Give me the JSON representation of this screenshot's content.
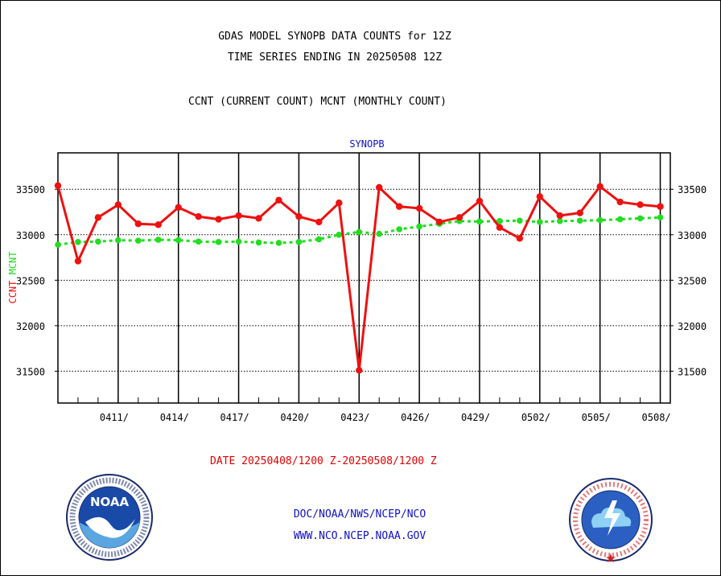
{
  "header": {
    "title_line1": "GDAS MODEL SYNOPB DATA COUNTS for 12Z",
    "title_line2": "TIME SERIES ENDING IN 20250508 12Z",
    "subtitle": "CCNT (CURRENT COUNT) MCNT (MONTHLY COUNT)"
  },
  "footer": {
    "date_range": "DATE 20250408/1200 Z-20250508/1200 Z",
    "doc": "DOC/NOAA/NWS/NCEP/NCO",
    "www": "WWW.NCO.NCEP.NOAA.GOV"
  },
  "logos": {
    "left_name": "noaa-logo",
    "left_text": "NOAA",
    "right_name": "nws-logo"
  },
  "colors": {
    "ccnt": "#ee1111",
    "mcnt": "#22dd22",
    "axis_text": "#000000",
    "title_blue": "#1010c0"
  },
  "chart_data": {
    "type": "line",
    "title": "SYNOPB",
    "ylabel_parts": [
      "CCNT",
      "MCNT"
    ],
    "ylim": [
      31150,
      33900
    ],
    "yticks": [
      31500,
      32000,
      32500,
      33000,
      33500
    ],
    "x_start_day": 0,
    "x_end_day": 30.5,
    "x_tick_days": [
      3,
      6,
      9,
      12,
      15,
      18,
      21,
      24,
      27,
      30
    ],
    "x_tick_labels": [
      "0411/",
      "0414/",
      "0417/",
      "0420/",
      "0423/",
      "0426/",
      "0429/",
      "0502/",
      "0505/",
      "0508/"
    ],
    "grid": "horizontal dotted at y ticks; vertical solid at x ticks",
    "series": [
      {
        "name": "CCNT",
        "color": "#ee1111",
        "values": [
          33540,
          32710,
          33190,
          33330,
          33120,
          33110,
          33300,
          33200,
          33170,
          33210,
          33180,
          33380,
          33200,
          33140,
          33350,
          31510,
          33520,
          33310,
          33290,
          33140,
          33190,
          33370,
          33080,
          32960,
          33420,
          33210,
          33240,
          33530,
          33360,
          33330,
          33310
        ]
      },
      {
        "name": "MCNT",
        "color": "#22dd22",
        "values": [
          32890,
          32920,
          32925,
          32940,
          32935,
          32945,
          32940,
          32925,
          32920,
          32925,
          32915,
          32910,
          32920,
          32950,
          33000,
          33030,
          33010,
          33060,
          33090,
          33120,
          33150,
          33145,
          33150,
          33155,
          33140,
          33150,
          33155,
          33160,
          33170,
          33180,
          33190
        ]
      }
    ]
  }
}
